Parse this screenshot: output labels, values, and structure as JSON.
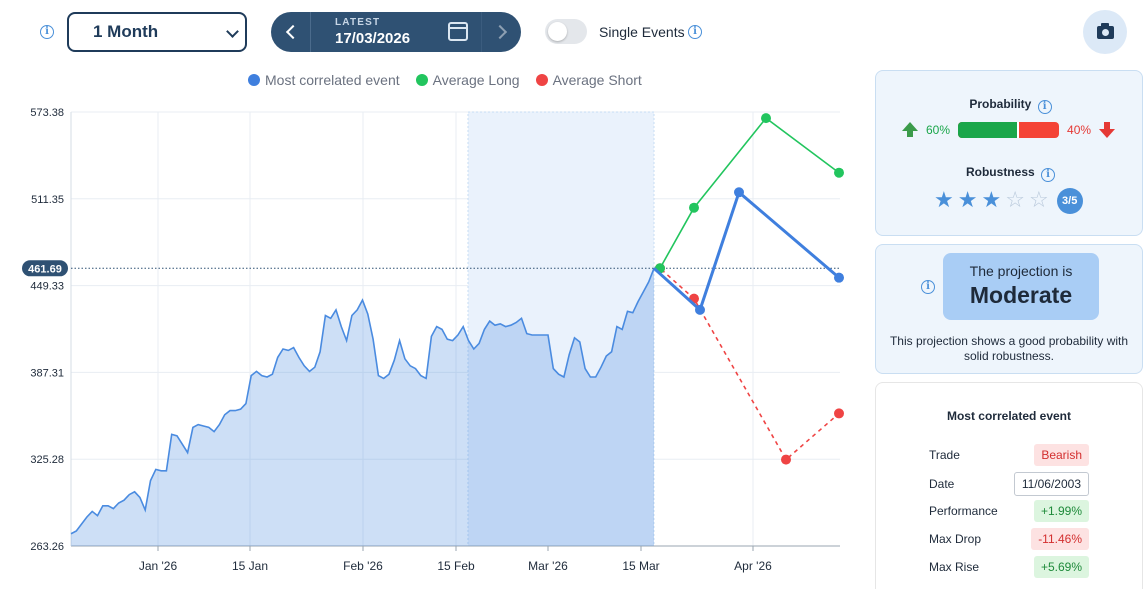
{
  "toolbar": {
    "period": "1 Month",
    "date_label": "LATEST",
    "date_value": "17/03/2026",
    "single_events_label": "Single Events",
    "single_events_on": false
  },
  "chart_data": {
    "type": "line",
    "legend": [
      {
        "name": "Most correlated event",
        "color": "#3f7fde"
      },
      {
        "name": "Average Long",
        "color": "#22c55e"
      },
      {
        "name": "Average Short",
        "color": "#ef4444"
      }
    ],
    "y_ticks": [
      "573.38",
      "511.35",
      "449.33",
      "387.31",
      "325.28",
      "263.26"
    ],
    "ylim": [
      263.26,
      573.38
    ],
    "x_ticks": [
      "Jan '26",
      "15 Jan",
      "Feb '26",
      "15 Feb",
      "Mar '26",
      "15 Mar",
      "Apr '26"
    ],
    "current_value_label": "461.69",
    "current_value": 461.69,
    "history": [
      272,
      274,
      279,
      284,
      288,
      285,
      292,
      292,
      290,
      294,
      296,
      300,
      302,
      298,
      289,
      310,
      318,
      317,
      317,
      343,
      342,
      336,
      330,
      348,
      350,
      349,
      348,
      345,
      350,
      357,
      360,
      360,
      361,
      365,
      385,
      388,
      385,
      384,
      386,
      398,
      404,
      403,
      405,
      398,
      392,
      388,
      391,
      402,
      428,
      426,
      432,
      420,
      410,
      428,
      432,
      439,
      429,
      411,
      385,
      383,
      386,
      396,
      410,
      397,
      392,
      390,
      385,
      383,
      413,
      420,
      418,
      411,
      410,
      414,
      420,
      410,
      404,
      408,
      418,
      424,
      421,
      422,
      420,
      421,
      423,
      426,
      415,
      414,
      414,
      414,
      414,
      390,
      386,
      384,
      400,
      412,
      409,
      390,
      384,
      384,
      391,
      399,
      402,
      420,
      418,
      431,
      430,
      438,
      445,
      452,
      461.69
    ],
    "most_correlated_event": [
      461.69,
      432,
      516,
      455
    ],
    "average_long": [
      461.69,
      505,
      569,
      530
    ],
    "average_short": [
      461.69,
      440,
      325,
      358
    ]
  },
  "probability": {
    "title": "Probability",
    "up_pct": "60%",
    "down_pct": "40%",
    "up_value": 60,
    "up_color": "#1aa64a",
    "down_color": "#f44336"
  },
  "robustness": {
    "title": "Robustness",
    "score_text": "3/5",
    "stars_filled": 3,
    "stars_total": 5
  },
  "projection": {
    "prefix": "The projection is",
    "level": "Moderate",
    "description": "This projection shows a good probability with solid robustness."
  },
  "most_correlated": {
    "title": "Most correlated event",
    "rows": [
      {
        "label": "Trade",
        "value": "Bearish",
        "style": "red"
      },
      {
        "label": "Date",
        "value": "11/06/2003",
        "style": "date"
      },
      {
        "label": "Performance",
        "value": "+1.99%",
        "style": "green"
      },
      {
        "label": "Max Drop",
        "value": "-11.46%",
        "style": "red"
      },
      {
        "label": "Max Rise",
        "value": "+5.69%",
        "style": "green"
      }
    ]
  }
}
